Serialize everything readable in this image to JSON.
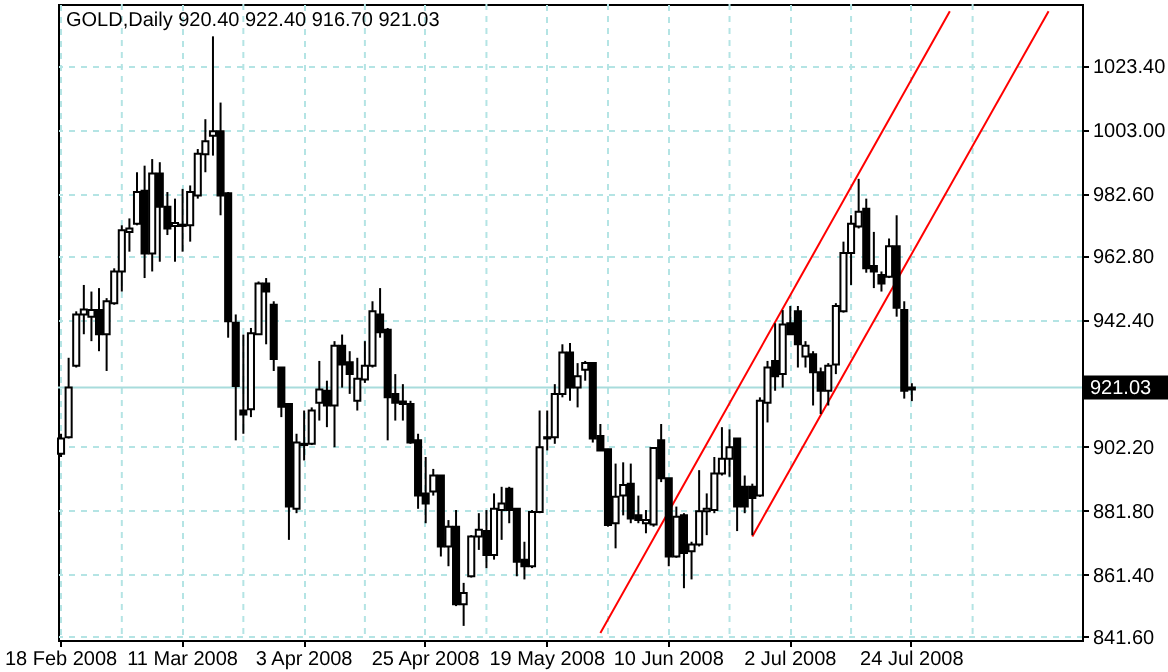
{
  "chart_data": {
    "type": "candlestick",
    "title": "GOLD,Daily  920.40 922.40 916.70 921.03",
    "color": "#000000",
    "categories": [
      "18 Feb 2008",
      null,
      null,
      null,
      null,
      null,
      null,
      null,
      null,
      null,
      null,
      null,
      null,
      null,
      null,
      null,
      "11 Mar 2008",
      null,
      null,
      null,
      null,
      null,
      null,
      null,
      null,
      null,
      null,
      null,
      null,
      null,
      null,
      null,
      "3 Apr 2008",
      null,
      null,
      null,
      null,
      null,
      null,
      null,
      null,
      null,
      null,
      null,
      null,
      null,
      null,
      null,
      "25 Apr 2008",
      null,
      null,
      null,
      null,
      null,
      null,
      null,
      null,
      null,
      null,
      null,
      null,
      null,
      null,
      null,
      "19 May 2008",
      null,
      null,
      null,
      null,
      null,
      null,
      null,
      null,
      null,
      null,
      null,
      null,
      null,
      null,
      null,
      "10 Jun 2008",
      null,
      null,
      null,
      null,
      null,
      null,
      null,
      null,
      null,
      null,
      null,
      null,
      null,
      null,
      null,
      "2 Jul 2008",
      null,
      null,
      null,
      null,
      null,
      null,
      null,
      null,
      null,
      null,
      null,
      null,
      null,
      null,
      null,
      "24 Jul 2008",
      null,
      null,
      null,
      null,
      null,
      null,
      null,
      null,
      null,
      null,
      null,
      null,
      null,
      null,
      null,
      null,
      null,
      null,
      null,
      null,
      null,
      null
    ],
    "ohlc": [
      [
        899.9,
        906.3,
        898.9,
        904.8
      ],
      [
        905.2,
        930.5,
        904.8,
        921.0
      ],
      [
        928.0,
        945.3,
        927.4,
        944.3
      ],
      [
        944.3,
        953.7,
        938.0,
        945.9
      ],
      [
        943.6,
        951.6,
        935.8,
        945.7
      ],
      [
        945.7,
        952.7,
        932.6,
        938.0
      ],
      [
        938.0,
        949.5,
        926.3,
        948.5
      ],
      [
        947.9,
        959.0,
        947.4,
        958.0
      ],
      [
        958.0,
        972.7,
        951.6,
        971.1
      ],
      [
        970.6,
        974.9,
        964.3,
        971.7
      ],
      [
        973.2,
        989.6,
        972.7,
        983.3
      ],
      [
        983.7,
        991.7,
        955.9,
        963.7
      ],
      [
        963.7,
        993.8,
        958.0,
        989.2
      ],
      [
        989.2,
        992.8,
        961.1,
        978.6
      ],
      [
        978.6,
        983.3,
        969.6,
        971.7
      ],
      [
        972.5,
        981.2,
        961.1,
        973.4
      ],
      [
        972.5,
        984.3,
        964.3,
        972.9
      ],
      [
        972.7,
        985.4,
        967.5,
        983.3
      ],
      [
        982.2,
        997.0,
        981.2,
        995.5
      ],
      [
        995.3,
        1006.5,
        989.6,
        999.5
      ],
      [
        1001.2,
        1032.9,
        994.9,
        1002.7
      ],
      [
        1002.7,
        1011.8,
        975.9,
        982.2
      ],
      [
        982.9,
        983.3,
        936.9,
        942.1
      ],
      [
        941.7,
        944.3,
        904.2,
        921.5
      ],
      [
        913.7,
        937.9,
        906.3,
        912.4
      ],
      [
        914.1,
        940.0,
        911.6,
        938.3
      ],
      [
        938.0,
        954.8,
        937.9,
        954.2
      ],
      [
        954.2,
        955.9,
        934.8,
        951.6
      ],
      [
        947.4,
        948.5,
        926.3,
        930.1
      ],
      [
        927.4,
        927.4,
        911.6,
        914.9
      ],
      [
        915.8,
        915.8,
        872.5,
        883.1
      ],
      [
        882.4,
        906.3,
        881.0,
        903.5
      ],
      [
        902.7,
        913.7,
        897.8,
        903.1
      ],
      [
        903.1,
        914.7,
        902.7,
        913.7
      ],
      [
        916.2,
        929.5,
        910.5,
        920.4
      ],
      [
        920.0,
        923.2,
        908.4,
        915.3
      ],
      [
        915.3,
        935.8,
        902.0,
        934.3
      ],
      [
        934.3,
        937.9,
        921.0,
        928.4
      ],
      [
        929.1,
        932.6,
        919.0,
        925.3
      ],
      [
        916.8,
        930.5,
        913.7,
        923.8
      ],
      [
        923.6,
        935.8,
        922.5,
        928.0
      ],
      [
        928.0,
        948.5,
        927.4,
        945.3
      ],
      [
        944.3,
        952.7,
        936.9,
        938.6
      ],
      [
        939.4,
        940.0,
        904.2,
        917.9
      ],
      [
        919.0,
        925.3,
        910.5,
        916.2
      ],
      [
        916.6,
        922.1,
        910.5,
        915.8
      ],
      [
        915.8,
        916.8,
        903.1,
        903.5
      ],
      [
        904.2,
        906.3,
        882.4,
        886.6
      ],
      [
        887.3,
        898.9,
        877.8,
        884.1
      ],
      [
        887.9,
        895.1,
        886.6,
        893.0
      ],
      [
        893.0,
        893.0,
        867.2,
        870.4
      ],
      [
        870.4,
        878.8,
        864.1,
        876.7
      ],
      [
        876.7,
        882.0,
        851.4,
        852.0
      ],
      [
        852.0,
        858.8,
        845.1,
        855.6
      ],
      [
        860.9,
        874.0,
        860.5,
        873.6
      ],
      [
        873.6,
        881.0,
        869.3,
        875.7
      ],
      [
        875.3,
        882.0,
        863.5,
        867.7
      ],
      [
        867.7,
        887.3,
        866.2,
        882.4
      ],
      [
        882.0,
        889.4,
        872.5,
        884.1
      ],
      [
        888.8,
        889.4,
        877.8,
        882.0
      ],
      [
        882.4,
        882.4,
        860.9,
        865.5
      ],
      [
        866.2,
        871.9,
        859.9,
        864.1
      ],
      [
        864.1,
        882.0,
        863.5,
        881.4
      ],
      [
        881.4,
        913.7,
        881.0,
        902.0
      ],
      [
        905.2,
        913.7,
        901.0,
        904.8
      ],
      [
        905.2,
        922.1,
        903.1,
        919.0
      ],
      [
        919.0,
        934.8,
        917.9,
        932.2
      ],
      [
        932.2,
        935.2,
        916.8,
        921.0
      ],
      [
        921.0,
        928.8,
        914.7,
        924.6
      ],
      [
        926.7,
        929.5,
        923.2,
        928.8
      ],
      [
        928.8,
        928.8,
        903.5,
        904.8
      ],
      [
        905.6,
        909.4,
        901.0,
        901.0
      ],
      [
        901.4,
        901.4,
        876.7,
        877.2
      ],
      [
        877.8,
        896.8,
        869.8,
        886.2
      ],
      [
        886.6,
        897.2,
        880.3,
        890.0
      ],
      [
        890.4,
        896.8,
        877.8,
        879.3
      ],
      [
        880.3,
        886.6,
        877.8,
        878.8
      ],
      [
        877.8,
        882.0,
        874.6,
        878.8
      ],
      [
        877.4,
        901.8,
        876.7,
        901.8
      ],
      [
        904.2,
        909.4,
        890.9,
        892.1
      ],
      [
        892.1,
        892.1,
        864.1,
        867.2
      ],
      [
        867.2,
        883.1,
        866.8,
        879.9
      ],
      [
        880.3,
        881.0,
        857.1,
        868.3
      ],
      [
        868.9,
        871.9,
        859.9,
        871.0
      ],
      [
        871.0,
        894.7,
        870.4,
        881.6
      ],
      [
        881.6,
        887.3,
        874.0,
        882.4
      ],
      [
        882.0,
        898.9,
        881.0,
        893.6
      ],
      [
        893.6,
        908.4,
        893.0,
        898.3
      ],
      [
        898.3,
        907.7,
        892.6,
        902.0
      ],
      [
        904.8,
        904.8,
        875.3,
        883.1
      ],
      [
        889.4,
        893.0,
        881.0,
        883.1
      ],
      [
        889.4,
        890.4,
        874.0,
        885.8
      ],
      [
        886.6,
        917.9,
        886.2,
        916.8
      ],
      [
        916.2,
        929.5,
        909.9,
        927.4
      ],
      [
        929.5,
        941.5,
        920.0,
        924.6
      ],
      [
        925.3,
        945.7,
        921.0,
        941.1
      ],
      [
        941.5,
        947.0,
        937.9,
        938.0
      ],
      [
        945.3,
        947.0,
        927.4,
        934.8
      ],
      [
        930.9,
        935.8,
        927.4,
        934.3
      ],
      [
        931.6,
        932.6,
        915.3,
        925.9
      ],
      [
        925.9,
        927.4,
        912.6,
        920.0
      ],
      [
        920.0,
        928.8,
        915.3,
        928.0
      ],
      [
        928.4,
        947.9,
        925.3,
        947.0
      ],
      [
        945.3,
        967.5,
        944.9,
        963.9
      ],
      [
        963.9,
        975.9,
        953.7,
        973.2
      ],
      [
        972.3,
        987.5,
        971.7,
        977.0
      ],
      [
        978.0,
        981.2,
        957.6,
        959.0
      ],
      [
        959.7,
        970.6,
        952.7,
        958.0
      ],
      [
        956.9,
        958.0,
        951.6,
        954.2
      ],
      [
        956.3,
        968.5,
        955.9,
        966.0
      ],
      [
        966.0,
        975.9,
        943.6,
        946.4
      ],
      [
        945.7,
        948.5,
        917.5,
        920.0
      ],
      [
        920.4,
        922.4,
        916.7,
        921.03
      ],
      null,
      null,
      null,
      null,
      null,
      null,
      null,
      null,
      null,
      null,
      null,
      null,
      null,
      null,
      null,
      null,
      null,
      null,
      null,
      null,
      null,
      null
    ],
    "series": [
      {
        "type": "line",
        "color": "#ff0000",
        "values": [
          null,
          null,
          null,
          null,
          null,
          null,
          null,
          null,
          null,
          null,
          null,
          null,
          null,
          null,
          null,
          null,
          null,
          null,
          null,
          null,
          null,
          null,
          null,
          null,
          null,
          null,
          null,
          null,
          null,
          null,
          null,
          null,
          null,
          null,
          null,
          null,
          null,
          null,
          null,
          null,
          null,
          null,
          null,
          null,
          null,
          null,
          null,
          null,
          null,
          null,
          null,
          null,
          null,
          null,
          null,
          null,
          null,
          null,
          null,
          null,
          null,
          null,
          null,
          null,
          null,
          null,
          null,
          null,
          null,
          null,
          null,
          842.8,
          null,
          null,
          null,
          null,
          null,
          null,
          null,
          null,
          null,
          null,
          null,
          null,
          null,
          null,
          null,
          null,
          null,
          null,
          null,
          null,
          null,
          null,
          null,
          null,
          null,
          null,
          null,
          null,
          null,
          null,
          null,
          null,
          null,
          null,
          null,
          null,
          null,
          null,
          null,
          null,
          null,
          null,
          null,
          null,
          null,
          1040.9,
          null,
          null,
          null,
          null,
          null,
          null,
          null,
          null,
          null,
          null,
          null,
          null,
          null,
          null,
          null,
          null,
          null
        ]
      },
      {
        "type": "line",
        "color": "#ff0000",
        "values": [
          null,
          null,
          null,
          null,
          null,
          null,
          null,
          null,
          null,
          null,
          null,
          null,
          null,
          null,
          null,
          null,
          null,
          null,
          null,
          null,
          null,
          null,
          null,
          null,
          null,
          null,
          null,
          null,
          null,
          null,
          null,
          null,
          null,
          null,
          null,
          null,
          null,
          null,
          null,
          null,
          null,
          null,
          null,
          null,
          null,
          null,
          null,
          null,
          null,
          null,
          null,
          null,
          null,
          null,
          null,
          null,
          null,
          null,
          null,
          null,
          null,
          null,
          null,
          null,
          null,
          null,
          null,
          null,
          null,
          null,
          null,
          null,
          null,
          null,
          null,
          null,
          null,
          null,
          null,
          null,
          null,
          null,
          null,
          null,
          null,
          null,
          null,
          null,
          null,
          null,
          null,
          873.6,
          null,
          null,
          null,
          null,
          null,
          null,
          null,
          null,
          null,
          null,
          null,
          null,
          null,
          null,
          null,
          null,
          null,
          null,
          null,
          null,
          null,
          null,
          null,
          null,
          null,
          null,
          null,
          null,
          null,
          null,
          null,
          null,
          null,
          null,
          null,
          null,
          null,
          null,
          1040.9,
          null,
          null,
          null,
          null
        ]
      }
    ],
    "ylim": [
      840.6,
      1043.2
    ],
    "yticks": [
      {
        "value": 841.6,
        "label": "841.60"
      },
      {
        "value": 861.4,
        "label": "861.40"
      },
      {
        "value": 881.8,
        "label": "881.80"
      },
      {
        "value": 902.2,
        "label": "902.20"
      },
      {
        "value": 942.4,
        "label": "942.40"
      },
      {
        "value": 962.8,
        "label": "962.80"
      },
      {
        "value": 982.6,
        "label": "982.60"
      },
      {
        "value": 1003.0,
        "label": "1003.00"
      },
      {
        "value": 1023.4,
        "label": "1023.40"
      }
    ],
    "ref_lines": [
      {
        "axis": "y",
        "value": 921.03,
        "label": "921.03",
        "color": "#a8dcdc"
      }
    ],
    "grid": true
  }
}
